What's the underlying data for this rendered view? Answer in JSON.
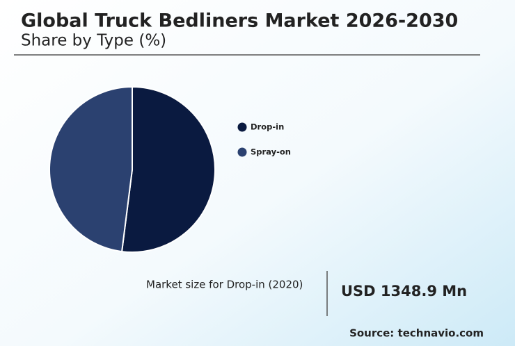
{
  "chart_data": {
    "type": "pie",
    "title": "Global Truck Bedliners Market 2026-2030",
    "subtitle": "Share by Type (%)",
    "categories": [
      "Drop-in",
      "Spray-on"
    ],
    "values": [
      52,
      48
    ],
    "colors": [
      "#0a1a40",
      "#2b4170"
    ],
    "market_size_label": "Market size for Drop-in (2020)",
    "market_size_value": "USD 1348.9 Mn",
    "source": "Source: technavio.com"
  }
}
